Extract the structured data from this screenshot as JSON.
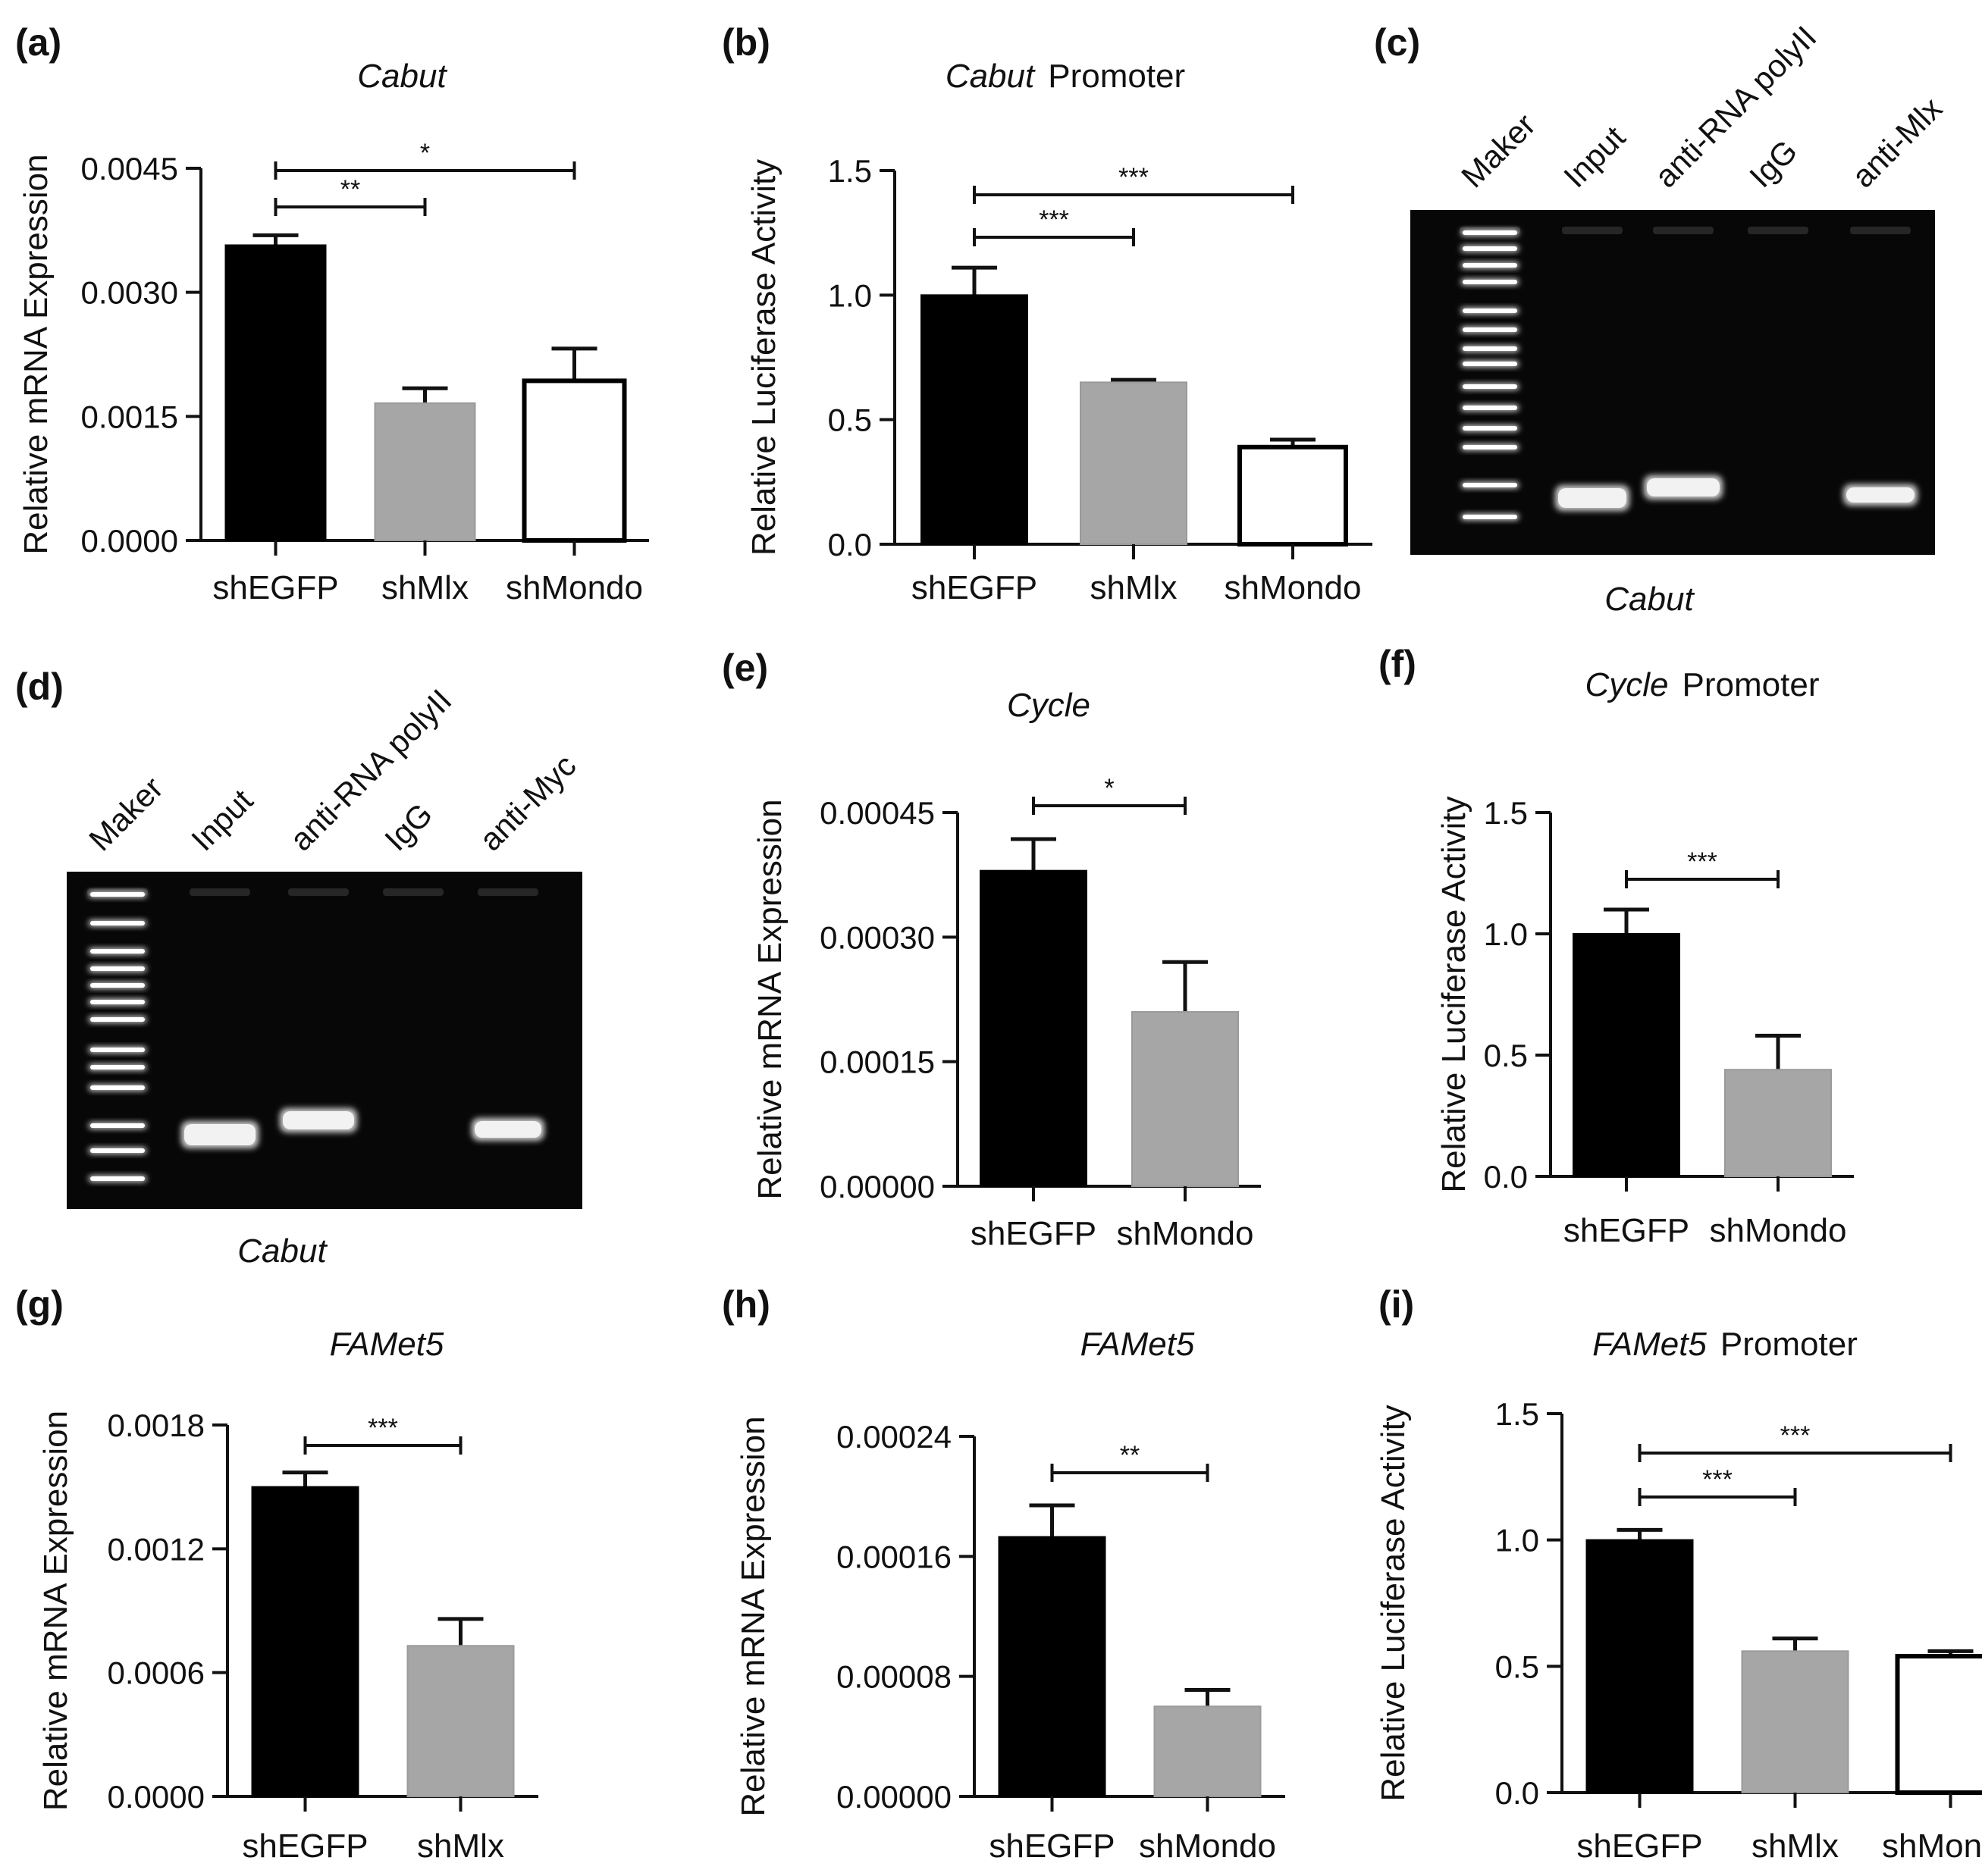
{
  "colors": {
    "shEGFP": "#000000",
    "shMlx": "#a6a6a6",
    "shMondo": "#ffffff",
    "gel_bg": "#070707",
    "band": "#f2f2f2"
  },
  "chart_data": [
    {
      "panel": "(a)",
      "type": "bar",
      "title_italic": "Cabut",
      "title_rest": "",
      "ylabel": "Relative mRNA Expression",
      "categories": [
        "shEGFP",
        "shMlx",
        "shMondo"
      ],
      "values": [
        0.00357,
        0.00166,
        0.00193
      ],
      "errors": [
        0.00012,
        0.00018,
        0.00039
      ],
      "styles": [
        "shEGFP",
        "shMlx",
        "shMondo"
      ],
      "ylim": [
        0,
        0.0045
      ],
      "ticks": [
        0,
        0.0015,
        0.003,
        0.0045
      ],
      "tick_labels": [
        "0.0000",
        "0.0015",
        "0.0030",
        "0.0045"
      ],
      "significance": [
        {
          "from": 0,
          "to": 1,
          "label": "**"
        },
        {
          "from": 0,
          "to": 2,
          "label": "*"
        }
      ]
    },
    {
      "panel": "(b)",
      "type": "bar",
      "title_italic": "Cabut",
      "title_rest": "Promoter",
      "ylabel": "Relative Luciferase Activity",
      "categories": [
        "shEGFP",
        "shMlx",
        "shMondo"
      ],
      "values": [
        1.0,
        0.65,
        0.39
      ],
      "errors": [
        0.11,
        0.01,
        0.03
      ],
      "styles": [
        "shEGFP",
        "shMlx",
        "shMondo"
      ],
      "ylim": [
        0,
        1.5
      ],
      "ticks": [
        0,
        0.5,
        1.0,
        1.5
      ],
      "tick_labels": [
        "0.0",
        "0.5",
        "1.0",
        "1.5"
      ],
      "significance": [
        {
          "from": 0,
          "to": 1,
          "label": "***"
        },
        {
          "from": 0,
          "to": 2,
          "label": "***"
        }
      ]
    },
    {
      "panel": "(e)",
      "type": "bar",
      "title_italic": "Cycle",
      "title_rest": "",
      "ylabel": "Relative mRNA Expression",
      "categories": [
        "shEGFP",
        "shMondo"
      ],
      "values": [
        0.00038,
        0.00021
      ],
      "errors": [
        3.8e-05,
        6e-05
      ],
      "styles": [
        "shEGFP",
        "shMlx"
      ],
      "ylim": [
        0,
        0.00045
      ],
      "ticks": [
        0,
        0.00015,
        0.0003,
        0.00045
      ],
      "tick_labels": [
        "0.00000",
        "0.00015",
        "0.00030",
        "0.00045"
      ],
      "significance": [
        {
          "from": 0,
          "to": 1,
          "label": "*"
        }
      ]
    },
    {
      "panel": "(f)",
      "type": "bar",
      "title_italic": "Cycle",
      "title_rest": "Promoter",
      "ylabel": "Relative Luciferase Activity",
      "categories": [
        "shEGFP",
        "shMondo"
      ],
      "values": [
        1.0,
        0.44
      ],
      "errors": [
        0.1,
        0.14
      ],
      "styles": [
        "shEGFP",
        "shMlx"
      ],
      "ylim": [
        0,
        1.5
      ],
      "ticks": [
        0,
        0.5,
        1.0,
        1.5
      ],
      "tick_labels": [
        "0.0",
        "0.5",
        "1.0",
        "1.5"
      ],
      "significance": [
        {
          "from": 0,
          "to": 1,
          "label": "***"
        }
      ]
    },
    {
      "panel": "(g)",
      "type": "bar",
      "title_italic": "FAMet5",
      "title_rest": "",
      "ylabel": "Relative mRNA Expression",
      "categories": [
        "shEGFP",
        "shMlx"
      ],
      "values": [
        0.0015,
        0.00073
      ],
      "errors": [
        7e-05,
        0.00013
      ],
      "styles": [
        "shEGFP",
        "shMlx"
      ],
      "ylim": [
        0,
        0.0018
      ],
      "ticks": [
        0,
        0.0006,
        0.0012,
        0.0018
      ],
      "tick_labels": [
        "0.0000",
        "0.0006",
        "0.0012",
        "0.0018"
      ],
      "significance": [
        {
          "from": 0,
          "to": 1,
          "label": "***"
        }
      ]
    },
    {
      "panel": "(h)",
      "type": "bar",
      "title_italic": "FAMet5",
      "title_rest": "",
      "ylabel": "Relative mRNA Expression",
      "categories": [
        "shEGFP",
        "shMondo"
      ],
      "values": [
        0.000173,
        6e-05
      ],
      "errors": [
        2.1e-05,
        1.1e-05
      ],
      "styles": [
        "shEGFP",
        "shMlx"
      ],
      "ylim": [
        0,
        0.00024
      ],
      "ticks": [
        0,
        8e-05,
        0.00016,
        0.00024
      ],
      "tick_labels": [
        "0.00000",
        "0.00008",
        "0.00016",
        "0.00024"
      ],
      "significance": [
        {
          "from": 0,
          "to": 1,
          "label": "**"
        }
      ]
    },
    {
      "panel": "(i)",
      "type": "bar",
      "title_italic": "FAMet5",
      "title_rest": "Promoter",
      "ylabel": "Relative Luciferase Activity",
      "categories": [
        "shEGFP",
        "shMlx",
        "shMondo"
      ],
      "values": [
        1.0,
        0.56,
        0.54
      ],
      "errors": [
        0.04,
        0.05,
        0.02
      ],
      "styles": [
        "shEGFP",
        "shMlx",
        "shMondo"
      ],
      "ylim": [
        0,
        1.5
      ],
      "ticks": [
        0,
        0.5,
        1.0,
        1.5
      ],
      "tick_labels": [
        "0.0",
        "0.5",
        "1.0",
        "1.5"
      ],
      "significance": [
        {
          "from": 0,
          "to": 1,
          "label": "***"
        },
        {
          "from": 0,
          "to": 2,
          "label": "***"
        }
      ]
    }
  ],
  "gels": [
    {
      "panel": "(c)",
      "lanes": [
        "Maker",
        "Input",
        "anti-RNA polyII",
        "IgG",
        "anti-Mlx"
      ],
      "caption": "Cabut"
    },
    {
      "panel": "(d)",
      "lanes": [
        "Maker",
        "Input",
        "anti-RNA polyII",
        "IgG",
        "anti-Myc"
      ],
      "caption": "Cabut"
    }
  ]
}
